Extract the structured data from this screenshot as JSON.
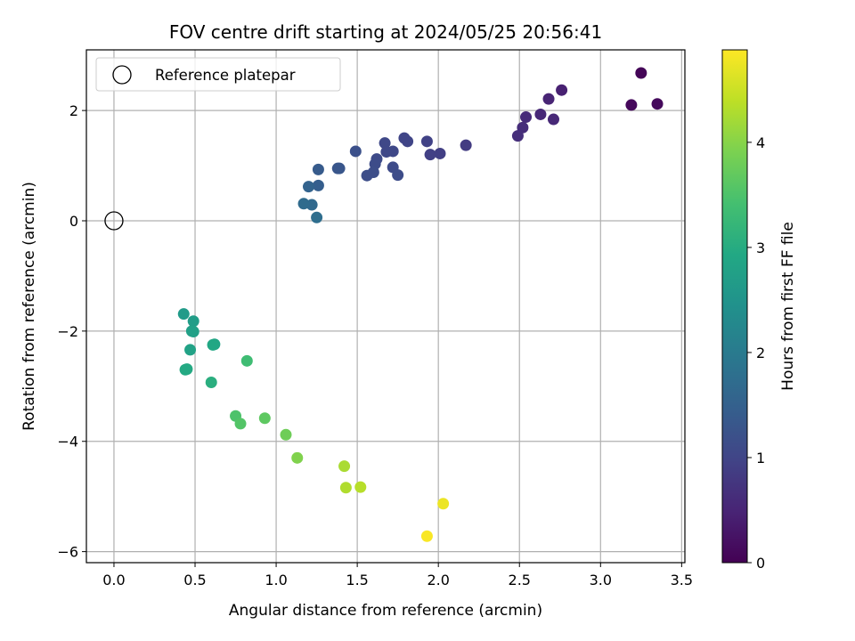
{
  "chart_data": {
    "type": "scatter",
    "title": "FOV centre drift starting at 2024/05/25 20:56:41",
    "xlabel": "Angular distance from reference (arcmin)",
    "ylabel": "Rotation from reference (arcmin)",
    "xlim": [
      -0.17,
      3.52
    ],
    "ylim": [
      -6.2,
      3.1
    ],
    "xticks": [
      0.0,
      0.5,
      1.0,
      1.5,
      2.0,
      2.5,
      3.0,
      3.5
    ],
    "xtick_labels": [
      "0.0",
      "0.5",
      "1.0",
      "1.5",
      "2.0",
      "2.5",
      "3.0",
      "3.5"
    ],
    "yticks": [
      -6,
      -4,
      -2,
      0,
      2
    ],
    "ytick_labels": [
      "−6",
      "−4",
      "−2",
      "0",
      "2"
    ],
    "grid": true,
    "legend": {
      "position": "top-left",
      "entries": [
        "Reference platepar"
      ]
    },
    "reference_point": {
      "x": 0.0,
      "y": 0.0,
      "label": "Reference platepar"
    },
    "colorbar": {
      "label": "Hours from first FF file",
      "colormap": "viridis",
      "range": [
        0,
        4.88
      ],
      "ticks": [
        0,
        1,
        2,
        3,
        4
      ],
      "tick_labels": [
        "0",
        "1",
        "2",
        "3",
        "4"
      ]
    },
    "points": [
      {
        "x": 3.25,
        "y": 2.68,
        "c": 0.05
      },
      {
        "x": 3.19,
        "y": 2.1,
        "c": 0.1
      },
      {
        "x": 3.35,
        "y": 2.12,
        "c": 0.12
      },
      {
        "x": 2.76,
        "y": 2.37,
        "c": 0.45
      },
      {
        "x": 2.68,
        "y": 2.21,
        "c": 0.5
      },
      {
        "x": 2.63,
        "y": 1.93,
        "c": 0.55
      },
      {
        "x": 2.71,
        "y": 1.84,
        "c": 0.55
      },
      {
        "x": 2.54,
        "y": 1.88,
        "c": 0.6
      },
      {
        "x": 2.52,
        "y": 1.69,
        "c": 0.62
      },
      {
        "x": 2.49,
        "y": 1.54,
        "c": 0.65
      },
      {
        "x": 2.17,
        "y": 1.37,
        "c": 0.85
      },
      {
        "x": 2.01,
        "y": 1.22,
        "c": 0.9
      },
      {
        "x": 1.95,
        "y": 1.2,
        "c": 0.92
      },
      {
        "x": 1.93,
        "y": 1.44,
        "c": 0.95
      },
      {
        "x": 1.81,
        "y": 1.44,
        "c": 1.0
      },
      {
        "x": 1.79,
        "y": 1.5,
        "c": 1.0
      },
      {
        "x": 1.67,
        "y": 1.41,
        "c": 1.05
      },
      {
        "x": 1.68,
        "y": 1.25,
        "c": 1.05
      },
      {
        "x": 1.72,
        "y": 1.26,
        "c": 1.05
      },
      {
        "x": 1.72,
        "y": 0.97,
        "c": 1.1
      },
      {
        "x": 1.62,
        "y": 1.12,
        "c": 1.1
      },
      {
        "x": 1.61,
        "y": 1.03,
        "c": 1.12
      },
      {
        "x": 1.6,
        "y": 0.88,
        "c": 1.15
      },
      {
        "x": 1.56,
        "y": 0.82,
        "c": 1.15
      },
      {
        "x": 1.75,
        "y": 0.83,
        "c": 1.12
      },
      {
        "x": 1.49,
        "y": 1.26,
        "c": 1.2
      },
      {
        "x": 1.39,
        "y": 0.95,
        "c": 1.3
      },
      {
        "x": 1.38,
        "y": 0.95,
        "c": 1.3
      },
      {
        "x": 1.26,
        "y": 0.93,
        "c": 1.4
      },
      {
        "x": 1.26,
        "y": 0.64,
        "c": 1.45
      },
      {
        "x": 1.2,
        "y": 0.62,
        "c": 1.55
      },
      {
        "x": 1.22,
        "y": 0.29,
        "c": 1.65
      },
      {
        "x": 1.17,
        "y": 0.31,
        "c": 1.7
      },
      {
        "x": 1.25,
        "y": 0.06,
        "c": 1.75
      },
      {
        "x": 0.43,
        "y": -1.69,
        "c": 2.65
      },
      {
        "x": 0.49,
        "y": -1.82,
        "c": 2.7
      },
      {
        "x": 0.49,
        "y": -2.01,
        "c": 2.75
      },
      {
        "x": 0.48,
        "y": -2.0,
        "c": 2.75
      },
      {
        "x": 0.62,
        "y": -2.24,
        "c": 2.85
      },
      {
        "x": 0.61,
        "y": -2.25,
        "c": 2.9
      },
      {
        "x": 0.47,
        "y": -2.34,
        "c": 2.8
      },
      {
        "x": 0.44,
        "y": -2.7,
        "c": 2.95
      },
      {
        "x": 0.45,
        "y": -2.69,
        "c": 2.95
      },
      {
        "x": 0.6,
        "y": -2.93,
        "c": 3.05
      },
      {
        "x": 0.82,
        "y": -2.54,
        "c": 3.35
      },
      {
        "x": 0.75,
        "y": -3.54,
        "c": 3.5
      },
      {
        "x": 0.78,
        "y": -3.68,
        "c": 3.55
      },
      {
        "x": 0.93,
        "y": -3.58,
        "c": 3.65
      },
      {
        "x": 1.06,
        "y": -3.88,
        "c": 3.8
      },
      {
        "x": 1.13,
        "y": -4.3,
        "c": 3.95
      },
      {
        "x": 1.42,
        "y": -4.45,
        "c": 4.25
      },
      {
        "x": 1.43,
        "y": -4.84,
        "c": 4.3
      },
      {
        "x": 1.52,
        "y": -4.83,
        "c": 4.35
      },
      {
        "x": 2.03,
        "y": -5.13,
        "c": 4.75
      },
      {
        "x": 1.93,
        "y": -5.72,
        "c": 4.85
      }
    ]
  }
}
